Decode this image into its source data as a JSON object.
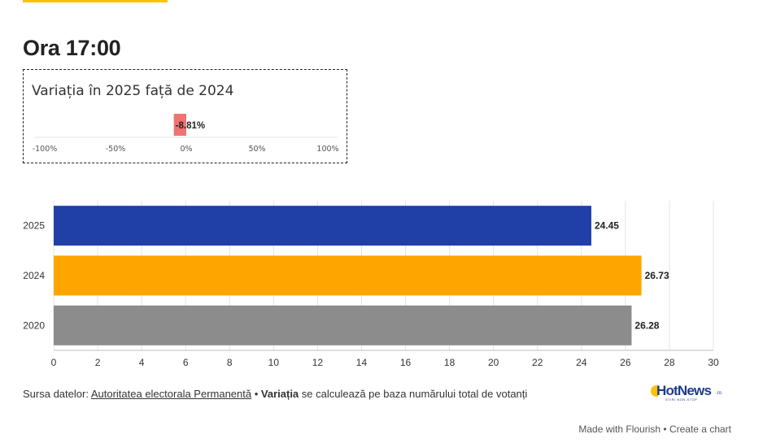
{
  "title": "Ora 17:00",
  "variation": {
    "title": "Variația în 2025 față de 2024",
    "value": -8.81,
    "value_label": "-8.81%",
    "color": "#f07272",
    "xlim": [
      -100,
      100
    ],
    "ticks": [
      -100,
      -50,
      0,
      50,
      100
    ],
    "tick_labels": [
      "-100%",
      "-50%",
      "0%",
      "50%",
      "100%"
    ]
  },
  "chart_data": {
    "type": "bar",
    "orientation": "horizontal",
    "categories": [
      "2025",
      "2024",
      "2020"
    ],
    "values": [
      24.45,
      26.73,
      26.28
    ],
    "value_labels": [
      "24.45",
      "26.73",
      "26.28"
    ],
    "colors": [
      "#2040a8",
      "#ffa500",
      "#8c8c8c"
    ],
    "xlim": [
      0,
      30
    ],
    "ticks": [
      0,
      2,
      4,
      6,
      8,
      10,
      12,
      14,
      16,
      18,
      20,
      22,
      24,
      26,
      28,
      30
    ],
    "grid": true
  },
  "footer": {
    "source_prefix": "Sursa datelor: ",
    "source_link": "Autoritatea electorala Permanentă",
    "separator": " • ",
    "note_bold": "Variația",
    "note_rest": " se calculează pe baza numărului total de votanți"
  },
  "logo": {
    "text": "HotNews",
    "suffix": ".ro",
    "tagline": "STIRI NON-STOP"
  },
  "credits": {
    "made_with": "Made with Flourish",
    "separator": " • ",
    "create": "Create a chart"
  }
}
